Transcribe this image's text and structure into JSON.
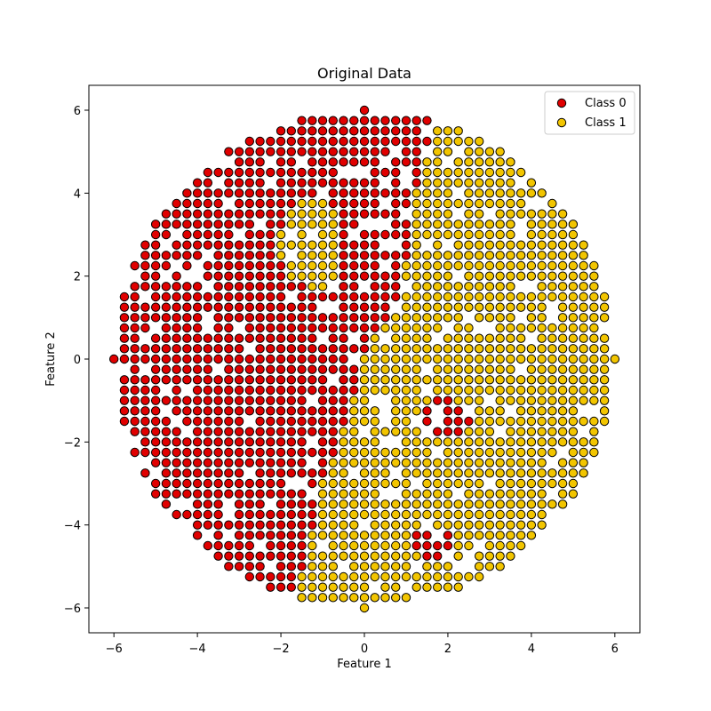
{
  "chart_data": {
    "type": "scatter",
    "title": "Original Data",
    "xlabel": "Feature 1",
    "ylabel": "Feature 2",
    "xlim": [
      -6.6,
      6.6
    ],
    "ylim": [
      -6.6,
      6.6
    ],
    "xticks": [
      -6,
      -4,
      -2,
      0,
      2,
      4,
      6
    ],
    "yticks": [
      -6,
      -4,
      -2,
      0,
      2,
      4,
      6
    ],
    "xtick_labels": [
      "−6",
      "−4",
      "−2",
      "0",
      "2",
      "4",
      "6"
    ],
    "ytick_labels": [
      "−6",
      "−4",
      "−2",
      "0",
      "2",
      "4",
      "6"
    ],
    "grid": false,
    "legend_position": "top-right",
    "grid_spacing": 0.25,
    "radius": 6,
    "series": [
      {
        "name": "Class 0",
        "color": "#e00000",
        "edge": "#000000"
      },
      {
        "name": "Class 1",
        "color": "#f2c500",
        "edge": "#000000"
      }
    ]
  }
}
